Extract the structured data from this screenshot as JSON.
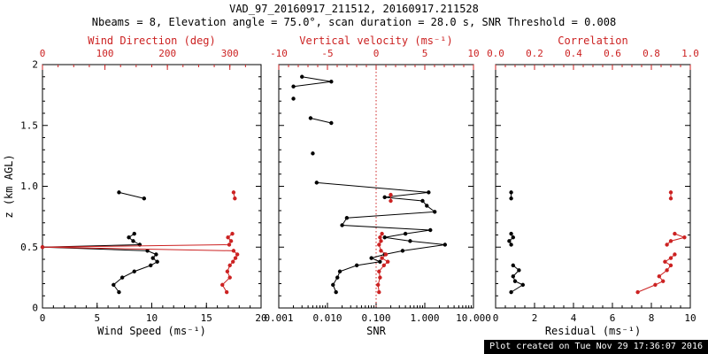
{
  "title": "VAD_97_20160917_211512, 20160917.211528",
  "subtitle": "Nbeams = 8, Elevation angle = 75.0°, scan duration = 28.0 s, SNR Threshold = 0.008",
  "footer": "Plot created on Tue Nov 29 17:36:07 2016",
  "colors": {
    "black": "#000000",
    "red": "#cc2222",
    "background": "#ffffff"
  },
  "chart_data": {
    "type": "line",
    "ylabel": "z (km AGL)",
    "ylim": [
      0,
      2
    ],
    "yticks": [
      {
        "v": 0,
        "t": "0"
      },
      {
        "v": 0.5,
        "t": "0.5"
      },
      {
        "v": 1.0,
        "t": "1.0"
      },
      {
        "v": 1.5,
        "t": "1.5"
      },
      {
        "v": 2.0,
        "t": "2"
      }
    ],
    "panels": [
      {
        "name": "wind",
        "bottom_axis": {
          "label": "Wind Speed (ms⁻¹)",
          "range": [
            0,
            20
          ],
          "scale": "linear",
          "minor": 1,
          "ticks": [
            {
              "v": 0,
              "t": "0"
            },
            {
              "v": 5,
              "t": "5"
            },
            {
              "v": 10,
              "t": "10"
            },
            {
              "v": 15,
              "t": "15"
            },
            {
              "v": 20,
              "t": "20"
            }
          ]
        },
        "top_axis": {
          "label": "Wind Direction (deg)",
          "range": [
            0,
            350
          ],
          "scale": "linear",
          "minor": 25,
          "ticks": [
            {
              "v": 0,
              "t": "0"
            },
            {
              "v": 100,
              "t": "100"
            },
            {
              "v": 200,
              "t": "200"
            },
            {
              "v": 300,
              "t": "300"
            }
          ]
        },
        "reflines": [],
        "series": [
          {
            "name": "wind-speed",
            "axis": "bottom",
            "color": "black",
            "marker": "circle",
            "segments": [
              [
                [
                  7.0,
                  0.13
                ],
                [
                  6.5,
                  0.19
                ],
                [
                  7.3,
                  0.25
                ],
                [
                  8.4,
                  0.3
                ],
                [
                  9.9,
                  0.35
                ],
                [
                  10.5,
                  0.38
                ],
                [
                  10.1,
                  0.41
                ],
                [
                  10.4,
                  0.44
                ],
                [
                  9.6,
                  0.47
                ],
                [
                  0.0,
                  0.5
                ],
                [
                  8.9,
                  0.52
                ],
                [
                  8.3,
                  0.55
                ],
                [
                  7.9,
                  0.58
                ],
                [
                  8.4,
                  0.61
                ]
              ],
              [
                [
                  9.3,
                  0.9
                ],
                [
                  7.0,
                  0.95
                ]
              ]
            ]
          },
          {
            "name": "wind-direction",
            "axis": "top",
            "color": "red",
            "marker": "circle",
            "segments": [
              [
                [
                  295,
                  0.13
                ],
                [
                  288,
                  0.19
                ],
                [
                  300,
                  0.25
                ],
                [
                  296,
                  0.3
                ],
                [
                  300,
                  0.35
                ],
                [
                  305,
                  0.38
                ],
                [
                  309,
                  0.41
                ],
                [
                  312,
                  0.44
                ],
                [
                  306,
                  0.47
                ],
                [
                  0,
                  0.5
                ],
                [
                  299,
                  0.52
                ],
                [
                  302,
                  0.55
                ],
                [
                  297,
                  0.58
                ],
                [
                  304,
                  0.61
                ]
              ],
              [
                [
                  308,
                  0.9
                ],
                [
                  306,
                  0.95
                ]
              ]
            ]
          }
        ]
      },
      {
        "name": "snr",
        "bottom_axis": {
          "label": "SNR",
          "range": [
            0.001,
            10
          ],
          "scale": "log",
          "ticks": [
            {
              "v": 0.001,
              "t": "0.001"
            },
            {
              "v": 0.01,
              "t": "0.010"
            },
            {
              "v": 0.1,
              "t": "0.100"
            },
            {
              "v": 1,
              "t": "1.000"
            },
            {
              "v": 10,
              "t": "10.000"
            }
          ]
        },
        "top_axis": {
          "label": "Vertical velocity (ms⁻¹)",
          "range": [
            -10,
            10
          ],
          "scale": "linear",
          "minor": 1,
          "ticks": [
            {
              "v": -10,
              "t": "-10"
            },
            {
              "v": -5,
              "t": "-5"
            },
            {
              "v": 0,
              "t": "0"
            },
            {
              "v": 5,
              "t": "5"
            },
            {
              "v": 10,
              "t": "10"
            }
          ]
        },
        "reflines": [
          {
            "axis": "top",
            "v": 0,
            "style": "dotted",
            "color": "red"
          }
        ],
        "series": [
          {
            "name": "snr-profile",
            "axis": "bottom",
            "color": "black",
            "marker": "circle",
            "segments": [
              [
                [
                  0.015,
                  0.13
                ],
                [
                  0.013,
                  0.19
                ],
                [
                  0.016,
                  0.25
                ],
                [
                  0.018,
                  0.3
                ],
                [
                  0.04,
                  0.35
                ],
                [
                  0.12,
                  0.38
                ],
                [
                  0.08,
                  0.41
                ],
                [
                  0.15,
                  0.44
                ],
                [
                  0.35,
                  0.47
                ],
                [
                  2.6,
                  0.52
                ],
                [
                  0.5,
                  0.55
                ],
                [
                  0.15,
                  0.58
                ],
                [
                  0.4,
                  0.61
                ],
                [
                  1.3,
                  0.64
                ],
                [
                  0.02,
                  0.68
                ],
                [
                  0.025,
                  0.74
                ],
                [
                  1.6,
                  0.79
                ],
                [
                  1.1,
                  0.84
                ],
                [
                  0.9,
                  0.88
                ],
                [
                  0.15,
                  0.91
                ],
                [
                  1.2,
                  0.95
                ],
                [
                  0.006,
                  1.03
                ]
              ],
              [
                [
                  0.005,
                  1.27
                ]
              ],
              [
                [
                  0.012,
                  1.52
                ],
                [
                  0.0045,
                  1.56
                ]
              ],
              [
                [
                  0.002,
                  1.72
                ]
              ],
              [
                [
                  0.002,
                  1.82
                ],
                [
                  0.012,
                  1.86
                ],
                [
                  0.003,
                  1.9
                ]
              ]
            ]
          },
          {
            "name": "vertical-velocity",
            "axis": "top",
            "color": "red",
            "marker": "circle",
            "segments": [
              [
                [
                  0.3,
                  0.13
                ],
                [
                  0.2,
                  0.19
                ],
                [
                  0.4,
                  0.25
                ],
                [
                  0.3,
                  0.3
                ],
                [
                  0.8,
                  0.35
                ],
                [
                  1.2,
                  0.38
                ],
                [
                  0.6,
                  0.41
                ],
                [
                  1.0,
                  0.44
                ],
                [
                  0.5,
                  0.47
                ],
                [
                  0.3,
                  0.52
                ],
                [
                  0.5,
                  0.55
                ],
                [
                  0.4,
                  0.58
                ],
                [
                  0.6,
                  0.61
                ]
              ],
              [
                [
                  1.5,
                  0.88
                ],
                [
                  1.5,
                  0.93
                ]
              ]
            ]
          }
        ]
      },
      {
        "name": "residual",
        "bottom_axis": {
          "label": "Residual (ms⁻¹)",
          "range": [
            0,
            10
          ],
          "scale": "linear",
          "minor": 0.5,
          "ticks": [
            {
              "v": 0,
              "t": "0"
            },
            {
              "v": 2,
              "t": "2"
            },
            {
              "v": 4,
              "t": "4"
            },
            {
              "v": 6,
              "t": "6"
            },
            {
              "v": 8,
              "t": "8"
            },
            {
              "v": 10,
              "t": "10"
            }
          ]
        },
        "top_axis": {
          "label": "Correlation",
          "range": [
            0,
            1
          ],
          "scale": "linear",
          "minor": 0.05,
          "ticks": [
            {
              "v": 0,
              "t": "0.0"
            },
            {
              "v": 0.2,
              "t": "0.2"
            },
            {
              "v": 0.4,
              "t": "0.4"
            },
            {
              "v": 0.6,
              "t": "0.6"
            },
            {
              "v": 0.8,
              "t": "0.8"
            },
            {
              "v": 1.0,
              "t": "1.0"
            }
          ]
        },
        "reflines": [],
        "series": [
          {
            "name": "residual-profile",
            "axis": "bottom",
            "color": "black",
            "marker": "circle",
            "segments": [
              [
                [
                  0.8,
                  0.13
                ],
                [
                  1.4,
                  0.19
                ],
                [
                  1.0,
                  0.22
                ],
                [
                  0.9,
                  0.26
                ],
                [
                  1.2,
                  0.31
                ],
                [
                  0.9,
                  0.35
                ]
              ],
              [
                [
                  0.8,
                  0.52
                ],
                [
                  0.7,
                  0.55
                ],
                [
                  0.9,
                  0.58
                ],
                [
                  0.8,
                  0.61
                ]
              ],
              [
                [
                  0.8,
                  0.9
                ],
                [
                  0.8,
                  0.95
                ]
              ]
            ]
          },
          {
            "name": "correlation",
            "axis": "top",
            "color": "red",
            "marker": "circle",
            "segments": [
              [
                [
                  0.73,
                  0.13
                ],
                [
                  0.82,
                  0.19
                ],
                [
                  0.86,
                  0.22
                ],
                [
                  0.84,
                  0.26
                ],
                [
                  0.88,
                  0.31
                ],
                [
                  0.9,
                  0.35
                ],
                [
                  0.87,
                  0.38
                ],
                [
                  0.9,
                  0.41
                ],
                [
                  0.92,
                  0.44
                ]
              ],
              [
                [
                  0.88,
                  0.52
                ],
                [
                  0.9,
                  0.55
                ],
                [
                  0.97,
                  0.58
                ],
                [
                  0.92,
                  0.61
                ]
              ],
              [
                [
                  0.9,
                  0.9
                ],
                [
                  0.9,
                  0.95
                ]
              ]
            ]
          }
        ]
      }
    ]
  }
}
